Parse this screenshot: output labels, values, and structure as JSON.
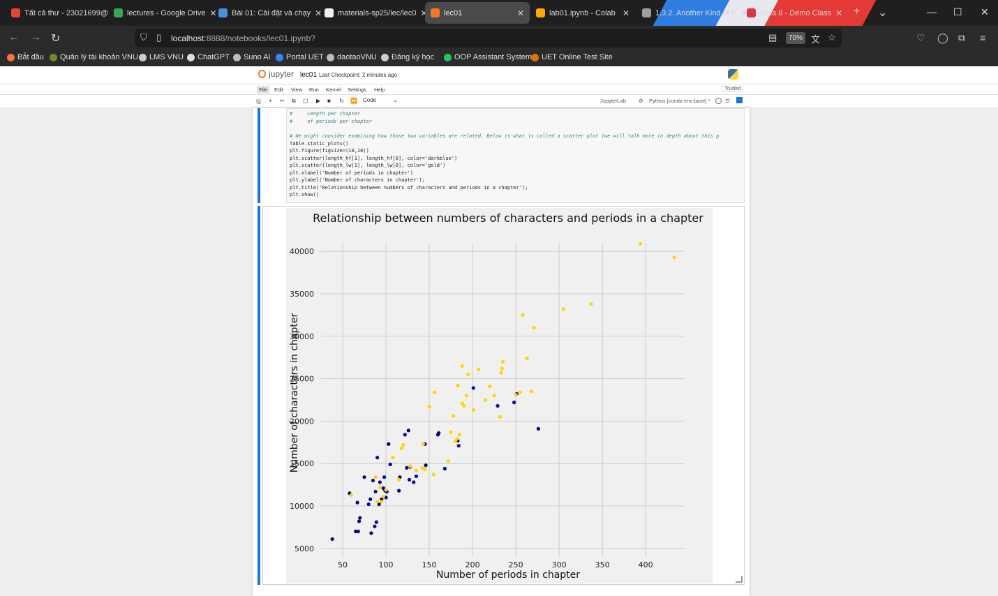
{
  "browser": {
    "tabs": [
      {
        "label": "Tất cả thư - 23021699@",
        "color": "#ea4335"
      },
      {
        "label": "lectures - Google Drive",
        "color": "#34a853"
      },
      {
        "label": "Bài 01: Cài đặt và chạy",
        "color": "#4a90e2"
      },
      {
        "label": "materials-sp25/lec/lec0",
        "color": "#f0f0f0"
      },
      {
        "label": "lec01",
        "color": "#f37726"
      },
      {
        "label": "lab01.ipynb - Colab",
        "color": "#f9ab00"
      },
      {
        "label": "1.3.2. Another Kind of C",
        "color": "#9aa0a6"
      },
      {
        "label": "Data 8 - Demo Class",
        "color": "#dc3545"
      }
    ],
    "new_tab": "+",
    "tab_list": "⌄",
    "window_controls": {
      "minimize": "—",
      "maximize": "☐",
      "close": "✕"
    },
    "url_host": "localhost",
    "url_path": ":8888/notebooks/lec01.ipynb?",
    "zoom": "70%",
    "bookmarks": [
      {
        "label": "Bắt đầu",
        "color": "#ff7139"
      },
      {
        "label": "Quản lý tài khoản VNU",
        "color": "#6b8e23"
      },
      {
        "label": "LMS VNU",
        "color": "#cccccc"
      },
      {
        "label": "ChatGPT",
        "color": "#dddddd"
      },
      {
        "label": "Suno AI",
        "color": "#bbbbbb"
      },
      {
        "label": "Portal UET",
        "color": "#3b82f6"
      },
      {
        "label": "daotaoVNU",
        "color": "#bbbbbb"
      },
      {
        "label": "Đăng ký học",
        "color": "#cccccc"
      },
      {
        "label": "OOP Assistant System",
        "color": "#22c55e"
      },
      {
        "label": "UET Online Test Site",
        "color": "#d97706"
      }
    ]
  },
  "jupyter": {
    "logo_text": "jupyter",
    "notebook_name": "lec01",
    "checkpoint": "Last Checkpoint: 2 minutes ago",
    "menu": [
      "File",
      "Edit",
      "View",
      "Run",
      "Kernel",
      "Settings",
      "Help"
    ],
    "trusted": "Trusted",
    "cell_type": "Code",
    "jupyterlab_link": "JupyterLab",
    "kernel_name": "Python [conda env:base] *"
  },
  "code_lines": [
    {
      "text": "#     Length per chapter",
      "kind": "cmt"
    },
    {
      "text": "#     of periods per chapter",
      "kind": "cmt"
    },
    {
      "text": "",
      "kind": "plain"
    },
    {
      "text": "# We might consider examining how those two variables are related. Below is what is called a scatter plot (we will talk more in depth about this p",
      "kind": "cmt"
    },
    {
      "text": "Table.static_plots()",
      "kind": "plain"
    },
    {
      "text": "plt.figure(figsize=(10,10))",
      "kind": "plain"
    },
    {
      "text": "plt.scatter(length_hf[1], length_hf[0], color='darkblue')",
      "kind": "plain"
    },
    {
      "text": "plt.scatter(length_lw[1], length_lw[0], color='gold')",
      "kind": "plain"
    },
    {
      "text": "plt.xlabel('Number of periods in chapter')",
      "kind": "plain"
    },
    {
      "text": "plt.ylabel('Number of characters in chapter');",
      "kind": "plain"
    },
    {
      "text": "plt.title('Relationship between numbers of characters and periods in a chapter');",
      "kind": "plain"
    },
    {
      "text": "plt.show()",
      "kind": "plain"
    }
  ],
  "chart_data": {
    "type": "scatter",
    "title": "Relationship between numbers of characters and periods in a chapter",
    "xlabel": "Number of periods in chapter",
    "ylabel": "Number of characters in chapter",
    "xlim": [
      25,
      445
    ],
    "ylim": [
      4000,
      41000
    ],
    "xticks": [
      50,
      100,
      150,
      200,
      250,
      300,
      350,
      400
    ],
    "yticks": [
      5000,
      10000,
      15000,
      20000,
      25000,
      30000,
      35000,
      40000
    ],
    "grid": true,
    "series": [
      {
        "color": "#00008b",
        "points": [
          [
            38,
            6100
          ],
          [
            58,
            11500
          ],
          [
            65,
            7000
          ],
          [
            67,
            10400
          ],
          [
            68,
            7000
          ],
          [
            69,
            8200
          ],
          [
            70,
            8600
          ],
          [
            75,
            13400
          ],
          [
            80,
            10200
          ],
          [
            82,
            10800
          ],
          [
            83,
            6800
          ],
          [
            85,
            13000
          ],
          [
            87,
            7600
          ],
          [
            88,
            11700
          ],
          [
            89,
            8100
          ],
          [
            90,
            15700
          ],
          [
            92,
            10200
          ],
          [
            93,
            12800
          ],
          [
            95,
            10800
          ],
          [
            97,
            12100
          ],
          [
            98,
            13400
          ],
          [
            99,
            11800
          ],
          [
            100,
            11000
          ],
          [
            101,
            11700
          ],
          [
            103,
            17300
          ],
          [
            105,
            14900
          ],
          [
            115,
            11800
          ],
          [
            116,
            13400
          ],
          [
            122,
            18400
          ],
          [
            124,
            14500
          ],
          [
            126,
            18900
          ],
          [
            127,
            13100
          ],
          [
            128,
            14600
          ],
          [
            132,
            12800
          ],
          [
            135,
            13500
          ],
          [
            145,
            17300
          ],
          [
            146,
            14800
          ],
          [
            160,
            18400
          ],
          [
            161,
            18600
          ],
          [
            168,
            14400
          ],
          [
            183,
            17700
          ],
          [
            184,
            17100
          ],
          [
            201,
            23900
          ],
          [
            229,
            21800
          ],
          [
            248,
            22200
          ],
          [
            251,
            23200
          ],
          [
            276,
            19100
          ]
        ]
      },
      {
        "color": "#ffd700",
        "points": [
          [
            60,
            11300
          ],
          [
            88,
            13400
          ],
          [
            90,
            10500
          ],
          [
            93,
            12200
          ],
          [
            95,
            10500
          ],
          [
            97,
            11100
          ],
          [
            100,
            11900
          ],
          [
            108,
            15700
          ],
          [
            115,
            13100
          ],
          [
            118,
            16800
          ],
          [
            120,
            17200
          ],
          [
            128,
            14700
          ],
          [
            135,
            14200
          ],
          [
            142,
            14500
          ],
          [
            143,
            17300
          ],
          [
            145,
            14300
          ],
          [
            150,
            21700
          ],
          [
            155,
            13700
          ],
          [
            156,
            23400
          ],
          [
            172,
            15300
          ],
          [
            175,
            18700
          ],
          [
            178,
            20600
          ],
          [
            180,
            17600
          ],
          [
            182,
            17900
          ],
          [
            183,
            24200
          ],
          [
            185,
            18400
          ],
          [
            188,
            22100
          ],
          [
            188,
            26500
          ],
          [
            190,
            21800
          ],
          [
            193,
            23000
          ],
          [
            195,
            25500
          ],
          [
            201,
            21300
          ],
          [
            207,
            26100
          ],
          [
            215,
            22500
          ],
          [
            220,
            24100
          ],
          [
            225,
            23000
          ],
          [
            232,
            20500
          ],
          [
            233,
            25700
          ],
          [
            234,
            26200
          ],
          [
            235,
            27000
          ],
          [
            250,
            23100
          ],
          [
            255,
            23400
          ],
          [
            258,
            32500
          ],
          [
            263,
            27400
          ],
          [
            268,
            23500
          ],
          [
            271,
            31000
          ],
          [
            305,
            33200
          ],
          [
            337,
            33800
          ],
          [
            394,
            40900
          ],
          [
            433,
            39300
          ]
        ]
      }
    ]
  }
}
